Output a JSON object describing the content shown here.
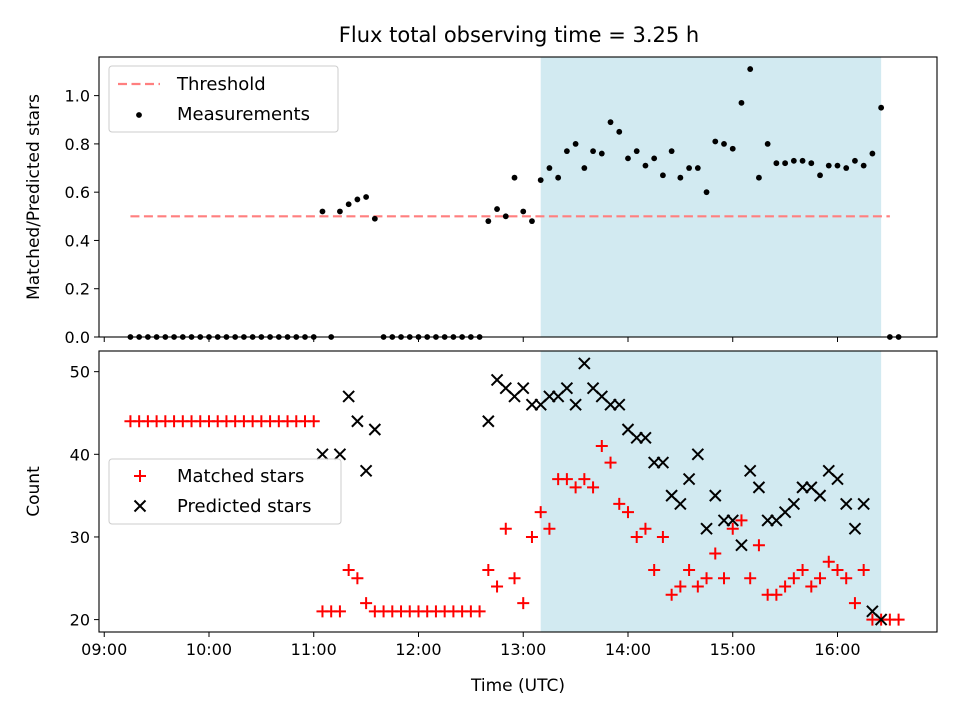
{
  "title": "Flux total observing time = 3.25 h",
  "colors": {
    "threshold": "#ff7f7f",
    "measurement": "#000000",
    "matched": "#ff0000",
    "predicted": "#000000",
    "highlight": "#add8e6"
  },
  "chart_data": [
    {
      "type": "scatter",
      "ylabel": "Matched/Predicted stars",
      "xlabel": "",
      "xlim": [
        "08:57",
        "16:57"
      ],
      "ylim": [
        0,
        1.16
      ],
      "yticks": [
        "0.0",
        "0.2",
        "0.4",
        "0.6",
        "0.8",
        "1.0"
      ],
      "grid": false,
      "legend_position": "upper-left",
      "highlight_span": [
        "13:10",
        "16:25"
      ],
      "threshold": {
        "name": "Threshold",
        "value": 0.5,
        "x_range": [
          "09:15",
          "16:30"
        ]
      },
      "series": [
        {
          "name": "Measurements",
          "marker": "dot",
          "x": [
            "09:15",
            "09:20",
            "09:25",
            "09:30",
            "09:35",
            "09:40",
            "09:45",
            "09:50",
            "09:55",
            "10:00",
            "10:05",
            "10:10",
            "10:15",
            "10:20",
            "10:25",
            "10:30",
            "10:35",
            "10:40",
            "10:45",
            "10:50",
            "10:55",
            "11:00",
            "11:05",
            "11:10",
            "11:15",
            "11:20",
            "11:25",
            "11:30",
            "11:35",
            "11:40",
            "11:45",
            "11:50",
            "11:55",
            "12:00",
            "12:05",
            "12:10",
            "12:15",
            "12:20",
            "12:25",
            "12:30",
            "12:35",
            "12:40",
            "12:45",
            "12:50",
            "12:55",
            "13:00",
            "13:05",
            "13:10",
            "13:15",
            "13:20",
            "13:25",
            "13:30",
            "13:35",
            "13:40",
            "13:45",
            "13:50",
            "13:55",
            "14:00",
            "14:05",
            "14:10",
            "14:15",
            "14:20",
            "14:25",
            "14:30",
            "14:35",
            "14:40",
            "14:45",
            "14:50",
            "14:55",
            "15:00",
            "15:05",
            "15:10",
            "15:15",
            "15:20",
            "15:25",
            "15:30",
            "15:35",
            "15:40",
            "15:45",
            "15:50",
            "15:55",
            "16:00",
            "16:05",
            "16:10",
            "16:15",
            "16:20",
            "16:25",
            "16:30",
            "16:35"
          ],
          "y": [
            0,
            0,
            0,
            0,
            0,
            0,
            0,
            0,
            0,
            0,
            0,
            0,
            0,
            0,
            0,
            0,
            0,
            0,
            0,
            0,
            0,
            0,
            0.52,
            0,
            0.52,
            0.55,
            0.57,
            0.58,
            0.49,
            0,
            0,
            0,
            0,
            0,
            0,
            0,
            0,
            0,
            0,
            0,
            0,
            0.48,
            0.53,
            0.5,
            0.66,
            0.52,
            0.48,
            0.65,
            0.7,
            0.66,
            0.77,
            0.8,
            0.7,
            0.77,
            0.76,
            0.89,
            0.85,
            0.74,
            0.77,
            0.71,
            0.74,
            0.67,
            0.77,
            0.66,
            0.7,
            0.7,
            0.6,
            0.81,
            0.8,
            0.78,
            0.97,
            1.11,
            0.66,
            0.8,
            0.72,
            0.72,
            0.73,
            0.73,
            0.72,
            0.67,
            0.71,
            0.71,
            0.7,
            0.73,
            0.71,
            0.76,
            0.95,
            0,
            0
          ]
        }
      ]
    },
    {
      "type": "scatter",
      "ylabel": "Count",
      "xlabel": "Time (UTC)",
      "xlim": [
        "08:57",
        "16:57"
      ],
      "ylim": [
        18.5,
        52.5
      ],
      "yticks": [
        "20",
        "30",
        "40",
        "50"
      ],
      "xticks": [
        "09:00",
        "10:00",
        "11:00",
        "12:00",
        "13:00",
        "14:00",
        "15:00",
        "16:00"
      ],
      "grid": false,
      "legend_position": "center-left",
      "highlight_span": [
        "13:10",
        "16:25"
      ],
      "series": [
        {
          "name": "Matched stars",
          "marker": "plus",
          "x": [
            "09:15",
            "09:20",
            "09:25",
            "09:30",
            "09:35",
            "09:40",
            "09:45",
            "09:50",
            "09:55",
            "10:00",
            "10:05",
            "10:10",
            "10:15",
            "10:20",
            "10:25",
            "10:30",
            "10:35",
            "10:40",
            "10:45",
            "10:50",
            "10:55",
            "11:00",
            "11:05",
            "11:10",
            "11:15",
            "11:20",
            "11:25",
            "11:30",
            "11:35",
            "11:40",
            "11:45",
            "11:50",
            "11:55",
            "12:00",
            "12:05",
            "12:10",
            "12:15",
            "12:20",
            "12:25",
            "12:30",
            "12:35",
            "12:40",
            "12:45",
            "12:50",
            "12:55",
            "13:00",
            "13:05",
            "13:10",
            "13:15",
            "13:20",
            "13:25",
            "13:30",
            "13:35",
            "13:40",
            "13:45",
            "13:50",
            "13:55",
            "14:00",
            "14:05",
            "14:10",
            "14:15",
            "14:20",
            "14:25",
            "14:30",
            "14:35",
            "14:40",
            "14:45",
            "14:50",
            "14:55",
            "15:00",
            "15:05",
            "15:10",
            "15:15",
            "15:20",
            "15:25",
            "15:30",
            "15:35",
            "15:40",
            "15:45",
            "15:50",
            "15:55",
            "16:00",
            "16:05",
            "16:10",
            "16:15",
            "16:20",
            "16:25",
            "16:30",
            "16:35"
          ],
          "y": [
            44,
            44,
            44,
            44,
            44,
            44,
            44,
            44,
            44,
            44,
            44,
            44,
            44,
            44,
            44,
            44,
            44,
            44,
            44,
            44,
            44,
            44,
            21,
            21,
            21,
            26,
            25,
            22,
            21,
            21,
            21,
            21,
            21,
            21,
            21,
            21,
            21,
            21,
            21,
            21,
            21,
            26,
            24,
            31,
            25,
            22,
            30,
            33,
            31,
            37,
            37,
            36,
            37,
            36,
            41,
            39,
            34,
            33,
            30,
            31,
            26,
            30,
            23,
            24,
            26,
            24,
            25,
            28,
            25,
            31,
            32,
            25,
            29,
            23,
            23,
            24,
            25,
            26,
            24,
            25,
            27,
            26,
            25,
            22,
            26,
            20,
            20,
            20,
            20
          ]
        },
        {
          "name": "Predicted stars",
          "marker": "x",
          "x": [
            "11:05",
            "11:15",
            "11:20",
            "11:25",
            "11:30",
            "11:35",
            "12:40",
            "12:45",
            "12:50",
            "12:55",
            "13:00",
            "13:05",
            "13:10",
            "13:15",
            "13:20",
            "13:25",
            "13:30",
            "13:35",
            "13:40",
            "13:45",
            "13:50",
            "13:55",
            "14:00",
            "14:05",
            "14:10",
            "14:15",
            "14:20",
            "14:25",
            "14:30",
            "14:35",
            "14:40",
            "14:45",
            "14:50",
            "14:55",
            "15:00",
            "15:05",
            "15:10",
            "15:15",
            "15:20",
            "15:25",
            "15:30",
            "15:35",
            "15:40",
            "15:45",
            "15:50",
            "15:55",
            "16:00",
            "16:05",
            "16:10",
            "16:15",
            "16:20",
            "16:25"
          ],
          "y": [
            40,
            40,
            47,
            44,
            38,
            43,
            44,
            49,
            48,
            47,
            48,
            46,
            46,
            47,
            47,
            48,
            46,
            51,
            48,
            47,
            46,
            46,
            43,
            42,
            42,
            39,
            39,
            35,
            34,
            37,
            40,
            31,
            35,
            32,
            32,
            29,
            38,
            36,
            32,
            32,
            33,
            34,
            36,
            36,
            35,
            38,
            37,
            34,
            31,
            34,
            21,
            20
          ]
        }
      ]
    }
  ]
}
